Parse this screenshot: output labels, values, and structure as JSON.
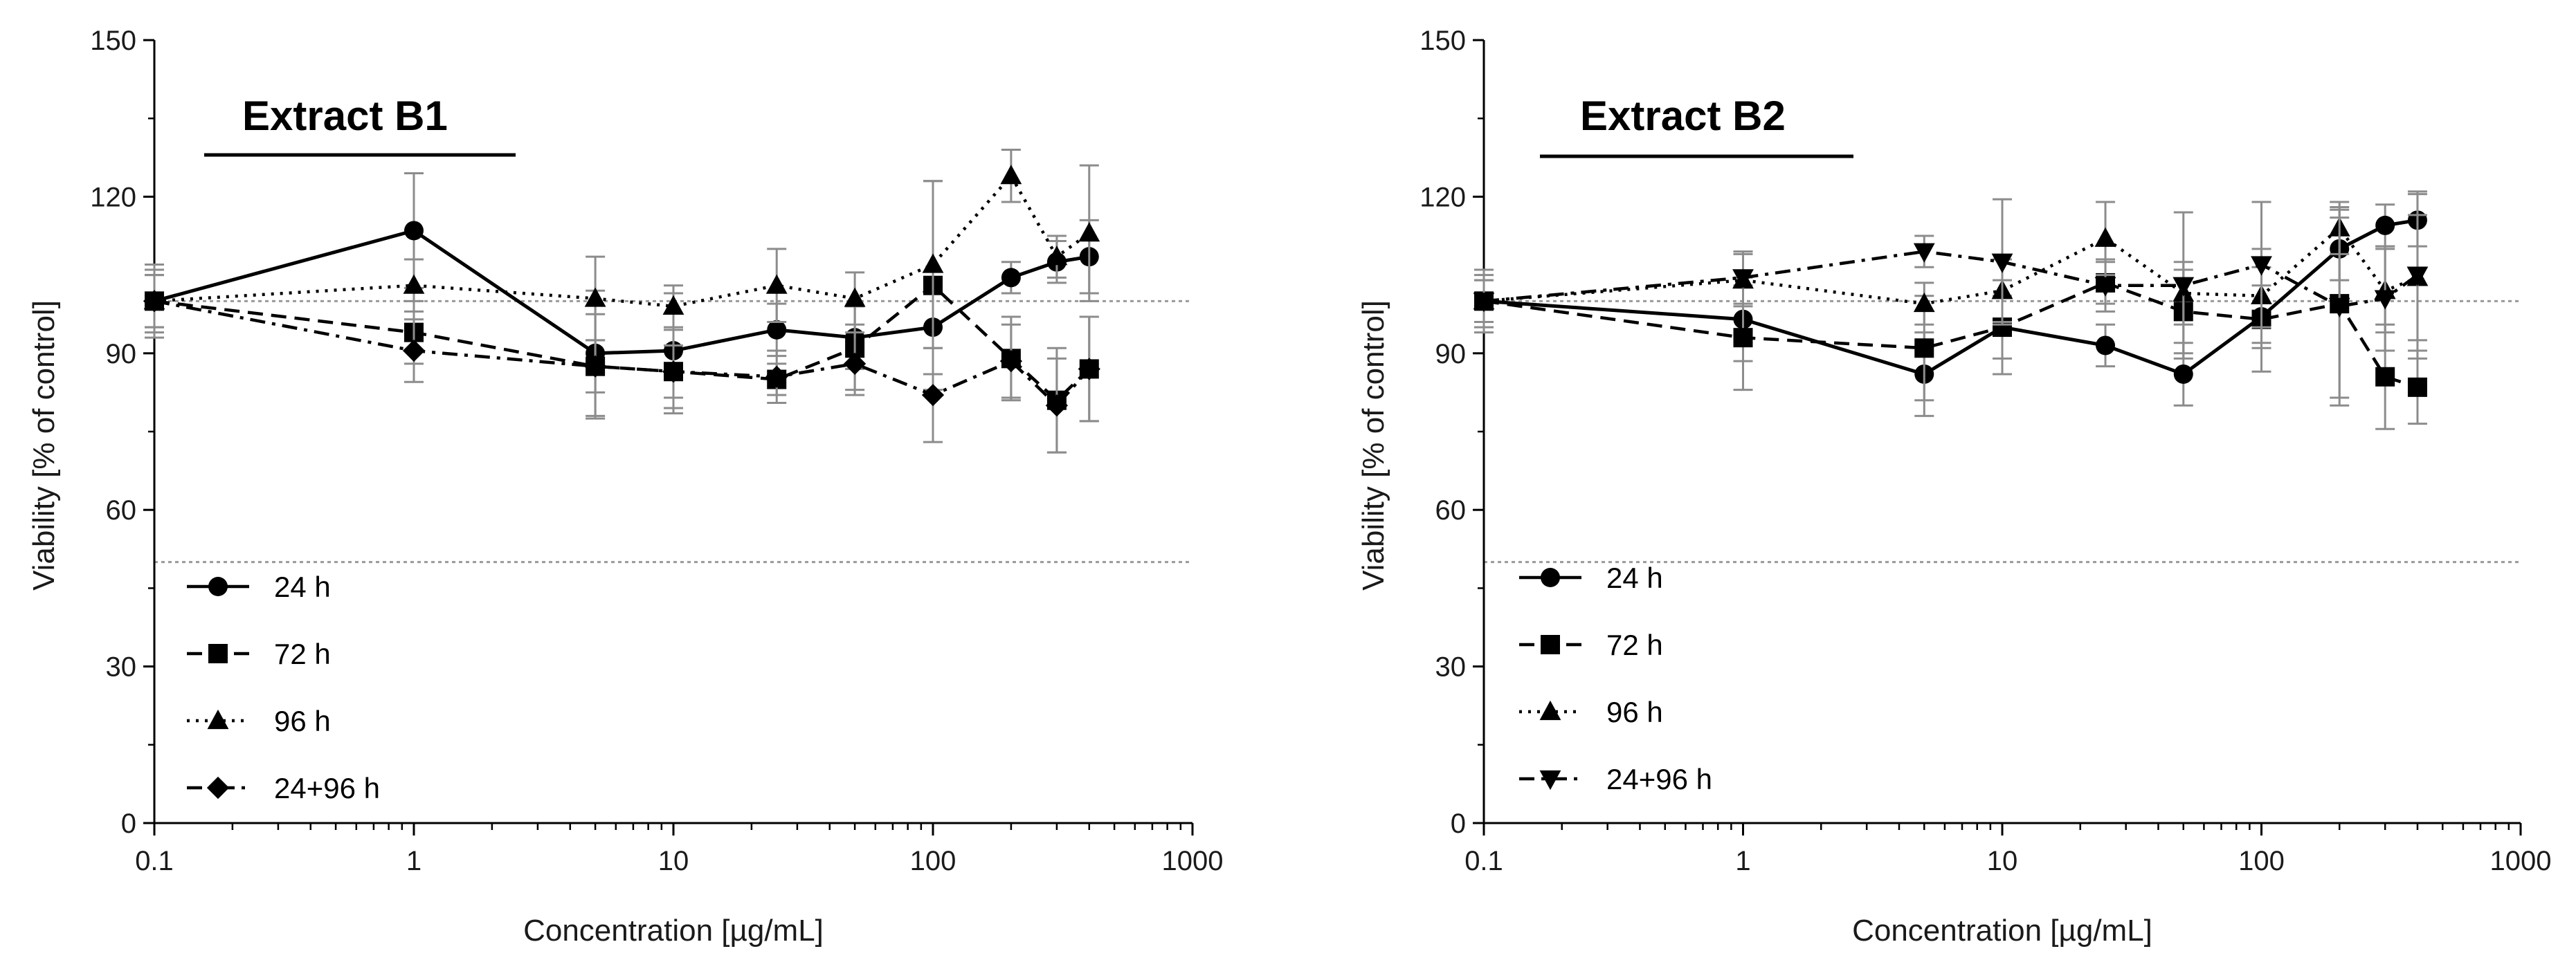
{
  "chart_data": [
    {
      "type": "scatter",
      "title": "Extract B1",
      "xlabel": "Concentration [µg/mL]",
      "ylabel": "Viability [% of control]",
      "xscale": "log",
      "xlim": [
        0.1,
        1000
      ],
      "ylim": [
        0,
        150
      ],
      "x_ticks": [
        "0.1",
        "1",
        "10",
        "100",
        "1000"
      ],
      "y_ticks": [
        "0",
        "30",
        "60",
        "90",
        "120",
        "150"
      ],
      "reference_lines": [
        100,
        50
      ],
      "grid": false,
      "legend_position": "bottom-left",
      "series": [
        {
          "name": "24 h",
          "marker": "circle",
          "line": "solid",
          "x": [
            0.1,
            1,
            5,
            10,
            25,
            50,
            100,
            200,
            300,
            400
          ],
          "y": [
            100,
            113.5,
            90,
            90.5,
            94.5,
            93,
            95,
            104.5,
            107.5,
            108.5
          ],
          "err": [
            5,
            11,
            12,
            11,
            5,
            6,
            9,
            3,
            4,
            7
          ]
        },
        {
          "name": "72 h",
          "marker": "square",
          "line": "dashed",
          "x": [
            0.1,
            1,
            5,
            10,
            25,
            50,
            100,
            200,
            300,
            400
          ],
          "y": [
            100,
            94,
            87.5,
            86.5,
            85,
            91,
            103,
            89,
            81,
            87
          ],
          "err": [
            6,
            6,
            10,
            8,
            3,
            8,
            20,
            8,
            10,
            10
          ]
        },
        {
          "name": "96 h",
          "marker": "triangle-up",
          "line": "dotted",
          "x": [
            0.1,
            1,
            5,
            10,
            25,
            50,
            100,
            200,
            300,
            400
          ],
          "y": [
            100,
            103,
            100.5,
            99,
            103,
            100.5,
            107,
            124,
            108.5,
            113
          ],
          "err": [
            7,
            5,
            8,
            4,
            7,
            5,
            16,
            5,
            4,
            13
          ]
        },
        {
          "name": "24+96 h",
          "marker": "diamond",
          "line": "dash-dot",
          "x": [
            0.1,
            1,
            5,
            10,
            25,
            50,
            100,
            200,
            300,
            400
          ],
          "y": [
            100,
            90.5,
            87.5,
            86.5,
            85.5,
            88,
            82,
            88.5,
            80,
            87
          ],
          "err": [
            5,
            6,
            5,
            5,
            5,
            6,
            9,
            7,
            9,
            10
          ]
        }
      ]
    },
    {
      "type": "scatter",
      "title": "Extract B2",
      "xlabel": "Concentration [µg/mL]",
      "ylabel": "Viability [% of control]",
      "xscale": "log",
      "xlim": [
        0.1,
        1000
      ],
      "ylim": [
        0,
        150
      ],
      "x_ticks": [
        "0.1",
        "1",
        "10",
        "100",
        "1000"
      ],
      "y_ticks": [
        "0",
        "30",
        "60",
        "90",
        "120",
        "150"
      ],
      "reference_lines": [
        100,
        50
      ],
      "grid": false,
      "legend_position": "bottom-left",
      "series": [
        {
          "name": "24 h",
          "marker": "circle",
          "line": "solid",
          "x": [
            0.1,
            1,
            5,
            10,
            25,
            50,
            100,
            200,
            300,
            400
          ],
          "y": [
            100,
            96.5,
            86,
            95,
            91.5,
            86,
            97,
            110,
            114.5,
            115.5
          ],
          "err": [
            4,
            8,
            8,
            6,
            4,
            6,
            6,
            6,
            4,
            5
          ]
        },
        {
          "name": "72 h",
          "marker": "square",
          "line": "dashed",
          "x": [
            0.1,
            1,
            5,
            10,
            25,
            50,
            100,
            200,
            300,
            400
          ],
          "y": [
            100,
            93,
            91,
            95,
            103.5,
            98,
            96.5,
            99.5,
            85.5,
            83.5
          ],
          "err": [
            5,
            10,
            10,
            9,
            4,
            8,
            10,
            18,
            10,
            7
          ]
        },
        {
          "name": "96 h",
          "marker": "triangle-up",
          "line": "dotted",
          "x": [
            0.1,
            1,
            5,
            10,
            25,
            50,
            100,
            200,
            300,
            400
          ],
          "y": [
            100,
            104,
            99.5,
            102,
            112,
            101.5,
            101,
            114,
            102,
            104.5
          ],
          "err": [
            6,
            5,
            4,
            6,
            7,
            6,
            9,
            5,
            8,
            12
          ]
        },
        {
          "name": "24+96 h",
          "marker": "triangle-down",
          "line": "dash-dot",
          "x": [
            0.1,
            1,
            5,
            10,
            25,
            50,
            100,
            200,
            300,
            400
          ],
          "y": [
            100,
            104.5,
            109.5,
            107.5,
            103,
            103,
            107,
            99,
            100.5,
            105
          ],
          "err": [
            4,
            5,
            3,
            12,
            5,
            14,
            12,
            19,
            10,
            16
          ]
        }
      ]
    }
  ]
}
